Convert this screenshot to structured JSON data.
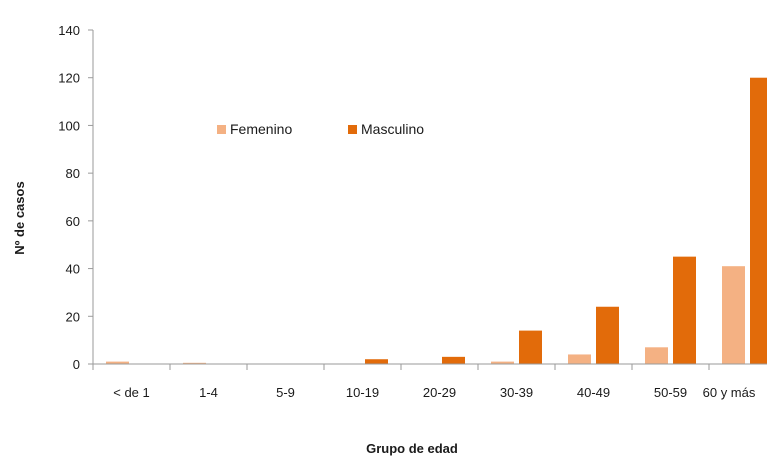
{
  "chart_data": {
    "type": "bar",
    "title": "",
    "xlabel": "Grupo de edad",
    "ylabel": "Nº de casos",
    "ylim": [
      0,
      140
    ],
    "yticks": [
      0,
      20,
      40,
      60,
      80,
      100,
      120,
      140
    ],
    "grid": false,
    "legend_position": "top-left",
    "categories": [
      "< de 1",
      "1-4",
      "5-9",
      "10-19",
      "20-29",
      "30-39",
      "40-49",
      "50-59",
      "60 y más"
    ],
    "series": [
      {
        "name": "Femenino",
        "color": "#f4b183",
        "values": [
          1,
          0.5,
          0,
          0,
          0,
          1,
          4,
          7,
          41
        ]
      },
      {
        "name": "Masculino",
        "color": "#e26b0a",
        "values": [
          0,
          0,
          0,
          2,
          3,
          14,
          24,
          45,
          120
        ]
      }
    ]
  }
}
